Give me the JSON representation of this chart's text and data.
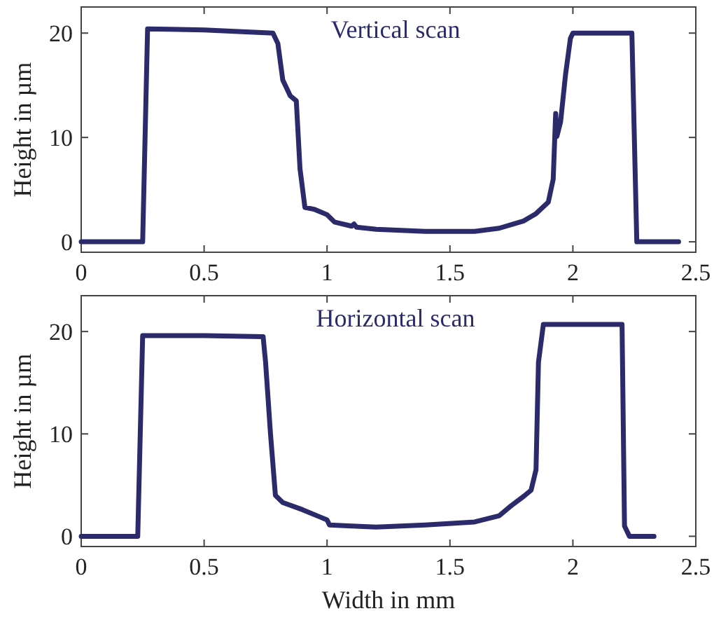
{
  "chart_data": [
    {
      "type": "line",
      "title": "Vertical scan",
      "ylabel": "Height in µm",
      "xlim": [
        0,
        2.5
      ],
      "xticks": [
        0,
        0.5,
        1,
        1.5,
        2,
        2.5
      ],
      "ylim": [
        -1,
        22.5
      ],
      "yticks": [
        0,
        10,
        20
      ],
      "series": [
        {
          "color": "#2b2a6b",
          "x": [
            0,
            0.25,
            0.27,
            0.5,
            0.78,
            0.8,
            0.82,
            0.85,
            0.875,
            0.89,
            0.91,
            0.95,
            1.0,
            1.03,
            1.1,
            1.11,
            1.12,
            1.2,
            1.4,
            1.6,
            1.7,
            1.8,
            1.85,
            1.9,
            1.92,
            1.93,
            1.935,
            1.95,
            1.97,
            1.99,
            2.0,
            2.24,
            2.26,
            2.43
          ],
          "values": [
            0,
            0,
            20.4,
            20.3,
            20,
            19,
            15.5,
            14,
            13.5,
            7,
            3.3,
            3.1,
            2.6,
            1.9,
            1.5,
            1.7,
            1.4,
            1.2,
            1.0,
            1.0,
            1.3,
            2.0,
            2.7,
            3.8,
            6,
            12.3,
            10.1,
            11.5,
            16,
            19.5,
            20,
            20,
            0,
            0
          ]
        }
      ]
    },
    {
      "type": "line",
      "title": "Horizontal scan",
      "xlabel": "Width in mm",
      "ylabel": "Height in µm",
      "xlim": [
        0,
        2.5
      ],
      "xticks": [
        0,
        0.5,
        1,
        1.5,
        2,
        2.5
      ],
      "ylim": [
        -1,
        23.5
      ],
      "yticks": [
        0,
        10,
        20
      ],
      "series": [
        {
          "color": "#2b2a6b",
          "x": [
            0,
            0.23,
            0.25,
            0.5,
            0.74,
            0.75,
            0.77,
            0.79,
            0.82,
            0.9,
            0.97,
            1.0,
            1.01,
            1.1,
            1.2,
            1.4,
            1.6,
            1.7,
            1.75,
            1.8,
            1.83,
            1.85,
            1.86,
            1.88,
            2.0,
            2.2,
            2.21,
            2.23,
            2.33
          ],
          "values": [
            0,
            0,
            19.6,
            19.6,
            19.5,
            17,
            10,
            4,
            3.3,
            2.6,
            1.9,
            1.6,
            1.1,
            1.0,
            0.9,
            1.1,
            1.4,
            2.0,
            3,
            3.9,
            4.5,
            6.5,
            17,
            20.7,
            20.7,
            20.7,
            1,
            0,
            0
          ]
        }
      ]
    }
  ]
}
